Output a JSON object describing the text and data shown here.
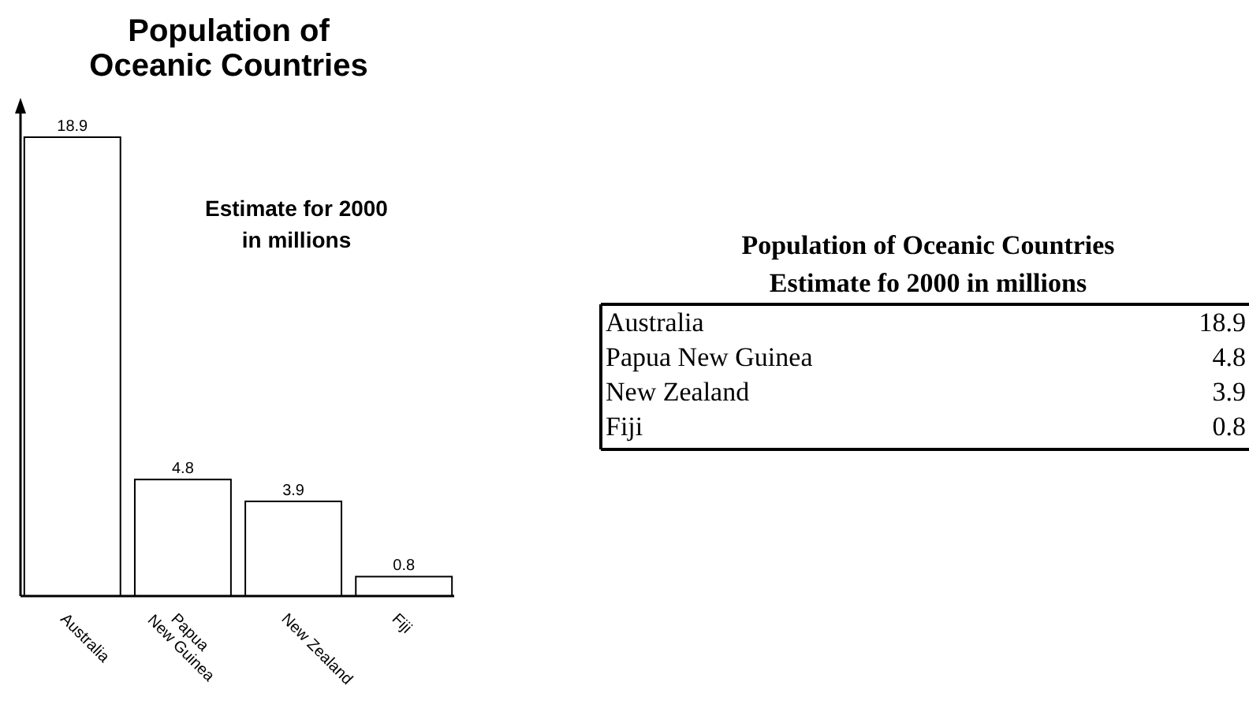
{
  "chart_data": [
    {
      "type": "bar",
      "title": "Population of\nOceanic Countries",
      "subtitle": "Estimate for 2000\nin millions",
      "categories": [
        "Australia",
        "Papua\nNew Guinea",
        "New Zealand",
        "Fiji"
      ],
      "values": [
        18.9,
        4.8,
        3.9,
        0.8
      ],
      "color": "#ffffff",
      "data_labels": true
    },
    {
      "type": "other",
      "title": "Population of Oceanic Countries",
      "subtitle": "Estimate fo 2000 in millions",
      "categories": [
        "Australia",
        "Papua New Guinea",
        "New Zealand",
        "Fiji"
      ],
      "values": [
        18.9,
        4.8,
        3.9,
        0.8
      ],
      "data_labels": true
    }
  ]
}
